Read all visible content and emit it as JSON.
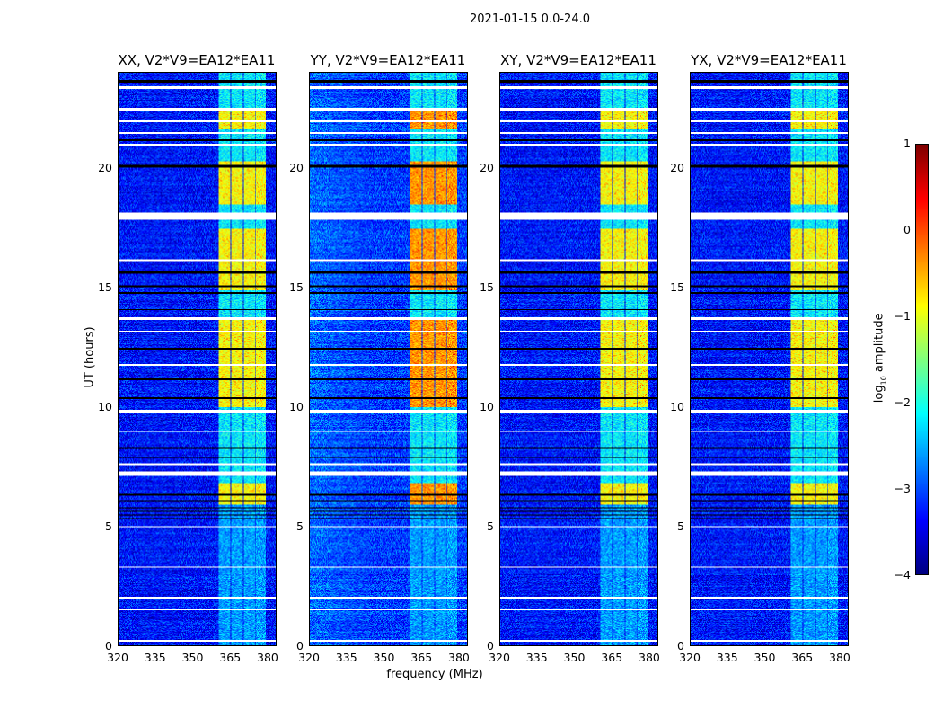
{
  "chart_data": {
    "type": "heatmap",
    "title": "2021-01-15 0.0-24.0",
    "xlabel": "frequency (MHz)",
    "ylabel": "UT (hours)",
    "xlim": [
      320,
      383.6
    ],
    "ylim": [
      0,
      24
    ],
    "xticks": [
      "320",
      "335",
      "350",
      "365",
      "380"
    ],
    "yticks": [
      "0",
      "5",
      "10",
      "15",
      "20"
    ],
    "colorbar": {
      "label": "log10 amplitude",
      "label_main": "log",
      "label_sub": "10",
      "label_rest": " amplitude",
      "range": [
        -4,
        1
      ],
      "ticks": [
        "1",
        "0",
        "−1",
        "−2",
        "−3",
        "−4"
      ],
      "colormap": "jet"
    },
    "panels": [
      {
        "title": "XX, V2*V9=EA12*EA11",
        "background": -3.3,
        "active_level": -0.9
      },
      {
        "title": "YY, V2*V9=EA12*EA11",
        "background": -3.1,
        "active_level": -0.4
      },
      {
        "title": "XY, V2*V9=EA12*EA11",
        "background": -3.3,
        "active_level": -0.9
      },
      {
        "title": "YX, V2*V9=EA12*EA11",
        "background": -3.3,
        "active_level": -0.9
      }
    ],
    "subbands_mhz": [
      [
        360.3,
        365
      ],
      [
        365.6,
        370
      ],
      [
        370.6,
        375
      ],
      [
        375.6,
        379.5
      ]
    ],
    "active_hours": [
      [
        5.9,
        6.8
      ],
      [
        10,
        13.7
      ],
      [
        14.9,
        17.5
      ],
      [
        18.5,
        20.3
      ],
      [
        21.7,
        22.4
      ]
    ],
    "flagged_white_hours": [
      [
        23.35,
        23.45
      ],
      [
        22.45,
        22.55
      ],
      [
        21.95,
        22.05
      ],
      [
        21.45,
        21.55
      ],
      [
        20.95,
        21.05
      ],
      [
        17.85,
        18.15
      ],
      [
        16.15,
        16.22
      ],
      [
        13.65,
        13.75
      ],
      [
        13.15,
        13.22
      ],
      [
        11.75,
        11.82
      ],
      [
        9.75,
        9.9
      ],
      [
        8.97,
        9.03
      ],
      [
        7.57,
        7.63
      ],
      [
        7.1,
        7.3
      ],
      [
        4.97,
        5.03
      ],
      [
        3.27,
        3.33
      ],
      [
        2.67,
        2.73
      ],
      [
        1.97,
        2.03
      ],
      [
        1.47,
        1.53
      ],
      [
        0.17,
        0.23
      ]
    ],
    "flagged_black_hours": [
      [
        23.6,
        23.7
      ],
      [
        21.15,
        21.25
      ],
      [
        20.05,
        20.15
      ],
      [
        15.6,
        15.7
      ],
      [
        15.05,
        15.12
      ],
      [
        14.75,
        14.82
      ],
      [
        14.05,
        14.12
      ],
      [
        12.4,
        12.48
      ],
      [
        11.15,
        11.22
      ],
      [
        10.35,
        10.42
      ],
      [
        8.25,
        8.32
      ],
      [
        7.85,
        7.92
      ],
      [
        6.3,
        6.38
      ],
      [
        6.05,
        6.12
      ],
      [
        5.3,
        5.35
      ],
      [
        5.45,
        5.5
      ],
      [
        5.6,
        5.65
      ],
      [
        5.75,
        5.8
      ]
    ]
  }
}
